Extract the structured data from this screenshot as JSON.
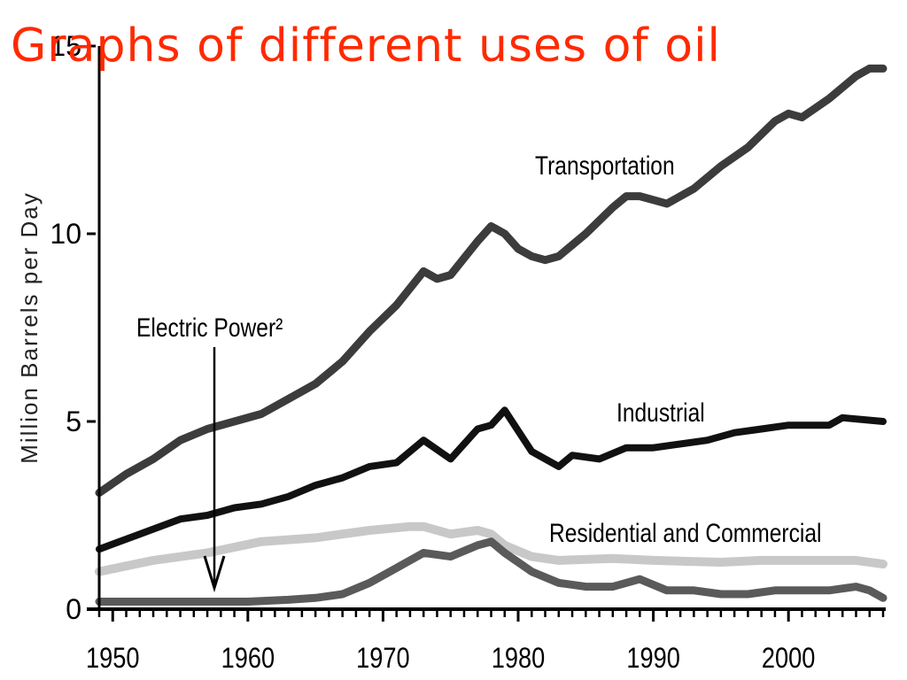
{
  "page": {
    "title": "Graphs of different uses of oil"
  },
  "chart_data": {
    "type": "line",
    "ylabel": "Million Barrels per Day",
    "xlim": [
      1949,
      2007
    ],
    "ylim": [
      0,
      15
    ],
    "y_ticks": [
      0,
      5,
      10,
      15
    ],
    "x_ticks": [
      1950,
      1960,
      1970,
      1980,
      1990,
      2000
    ],
    "grid": false,
    "series": [
      {
        "name": "Transportation",
        "color": "#3c3c3c",
        "x": [
          1949,
          1951,
          1953,
          1955,
          1957,
          1959,
          1961,
          1963,
          1965,
          1967,
          1969,
          1971,
          1973,
          1974,
          1975,
          1977,
          1978,
          1979,
          1980,
          1981,
          1982,
          1983,
          1985,
          1987,
          1988,
          1989,
          1990,
          1991,
          1993,
          1995,
          1997,
          1999,
          2000,
          2001,
          2003,
          2005,
          2006,
          2007
        ],
        "values": [
          3.1,
          3.6,
          4.0,
          4.5,
          4.8,
          5.0,
          5.2,
          5.6,
          6.0,
          6.6,
          7.4,
          8.1,
          9.0,
          8.8,
          8.9,
          9.8,
          10.2,
          10.0,
          9.6,
          9.4,
          9.3,
          9.4,
          10.0,
          10.7,
          11.0,
          11.0,
          10.9,
          10.8,
          11.2,
          11.8,
          12.3,
          13.0,
          13.2,
          13.1,
          13.6,
          14.2,
          14.4,
          14.4
        ]
      },
      {
        "name": "Industrial",
        "color": "#111111",
        "x": [
          1949,
          1952,
          1955,
          1957,
          1959,
          1961,
          1963,
          1965,
          1967,
          1969,
          1971,
          1973,
          1975,
          1977,
          1978,
          1979,
          1981,
          1983,
          1984,
          1986,
          1988,
          1990,
          1992,
          1994,
          1996,
          1998,
          2000,
          2003,
          2004,
          2007
        ],
        "values": [
          1.6,
          2.0,
          2.4,
          2.5,
          2.7,
          2.8,
          3.0,
          3.3,
          3.5,
          3.8,
          3.9,
          4.5,
          4.0,
          4.8,
          4.9,
          5.3,
          4.2,
          3.8,
          4.1,
          4.0,
          4.3,
          4.3,
          4.4,
          4.5,
          4.7,
          4.8,
          4.9,
          4.9,
          5.1,
          5.0
        ]
      },
      {
        "name": "Residential and Commercial",
        "color": "#c8c8c8",
        "x": [
          1949,
          1953,
          1957,
          1961,
          1965,
          1969,
          1972,
          1973,
          1975,
          1977,
          1978,
          1979,
          1981,
          1983,
          1987,
          1990,
          1995,
          1998,
          2000,
          2003,
          2005,
          2007
        ],
        "values": [
          1.0,
          1.3,
          1.5,
          1.8,
          1.9,
          2.1,
          2.2,
          2.2,
          2.0,
          2.1,
          2.0,
          1.7,
          1.4,
          1.3,
          1.35,
          1.3,
          1.25,
          1.3,
          1.3,
          1.3,
          1.3,
          1.2
        ]
      },
      {
        "name": "Electric Power²",
        "color": "#5a5a5a",
        "x": [
          1949,
          1955,
          1960,
          1963,
          1965,
          1967,
          1969,
          1971,
          1973,
          1975,
          1977,
          1978,
          1979,
          1981,
          1983,
          1985,
          1987,
          1989,
          1991,
          1993,
          1995,
          1997,
          1999,
          2001,
          2003,
          2005,
          2006,
          2007
        ],
        "values": [
          0.2,
          0.2,
          0.2,
          0.25,
          0.3,
          0.4,
          0.7,
          1.1,
          1.5,
          1.4,
          1.7,
          1.8,
          1.5,
          1.0,
          0.7,
          0.6,
          0.6,
          0.8,
          0.5,
          0.5,
          0.4,
          0.4,
          0.5,
          0.5,
          0.5,
          0.6,
          0.5,
          0.3
        ]
      }
    ],
    "annotations": {
      "transportation_label": "Transportation",
      "industrial_label": "Industrial",
      "residential_label": "Residential and Commercial",
      "electric_label": "Electric Power²"
    }
  }
}
